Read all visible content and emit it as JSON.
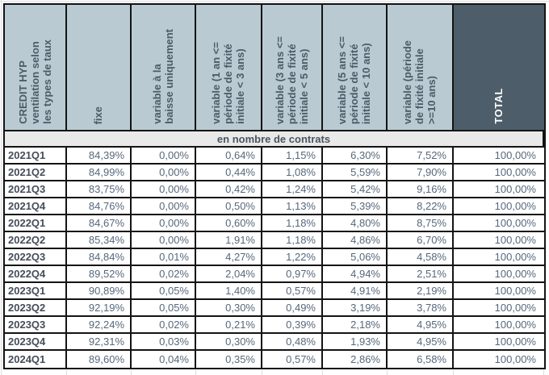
{
  "chart_data": {
    "type": "table",
    "title": "CREDIT HYP ventilation selon les types de taux",
    "corner_header": "CREDIT HYP\nventilation selon\nles types de taux",
    "column_headers": [
      "fixe",
      "variable à la\nbaisse uniquement",
      "variable (1 an <=\npériode de fixité\ninitiale < 3 ans)",
      "variable (3 ans <=\npériode de fixité\ninitiale < 5 ans)",
      "variable (5 ans  <=\npériode de fixité\ninitiale < 10 ans)",
      "variable (période\nde fixité initiale\n>=10 ans)",
      "TOTAL"
    ],
    "section_band": "en nombre de contrats",
    "rows": [
      {
        "label": "2021Q1",
        "values": [
          "84,39%",
          "0,00%",
          "0,64%",
          "1,15%",
          "6,30%",
          "7,52%",
          "100,00%"
        ]
      },
      {
        "label": "2021Q2",
        "values": [
          "84,99%",
          "0,00%",
          "0,44%",
          "1,08%",
          "5,59%",
          "7,90%",
          "100,00%"
        ]
      },
      {
        "label": "2021Q3",
        "values": [
          "83,75%",
          "0,00%",
          "0,42%",
          "1,24%",
          "5,42%",
          "9,16%",
          "100,00%"
        ]
      },
      {
        "label": "2021Q4",
        "values": [
          "84,76%",
          "0,00%",
          "0,50%",
          "1,13%",
          "5,39%",
          "8,22%",
          "100,00%"
        ]
      },
      {
        "label": "2022Q1",
        "values": [
          "84,67%",
          "0,00%",
          "0,60%",
          "1,18%",
          "4,80%",
          "8,75%",
          "100,00%"
        ]
      },
      {
        "label": "2022Q2",
        "values": [
          "85,34%",
          "0,00%",
          "1,91%",
          "1,18%",
          "4,86%",
          "6,70%",
          "100,00%"
        ]
      },
      {
        "label": "2022Q3",
        "values": [
          "84,84%",
          "0,01%",
          "4,27%",
          "1,22%",
          "5,06%",
          "4,58%",
          "100,00%"
        ]
      },
      {
        "label": "2022Q4",
        "values": [
          "89,52%",
          "0,02%",
          "2,04%",
          "0,97%",
          "4,94%",
          "2,51%",
          "100,00%"
        ]
      },
      {
        "label": "2023Q1",
        "values": [
          "90,89%",
          "0,05%",
          "1,40%",
          "0,57%",
          "4,91%",
          "2,19%",
          "100,00%"
        ]
      },
      {
        "label": "2023Q2",
        "values": [
          "92,19%",
          "0,05%",
          "0,30%",
          "0,49%",
          "3,19%",
          "3,78%",
          "100,00%"
        ]
      },
      {
        "label": "2023Q3",
        "values": [
          "92,24%",
          "0,02%",
          "0,21%",
          "0,39%",
          "2,18%",
          "4,95%",
          "100,00%"
        ]
      },
      {
        "label": "2023Q4",
        "values": [
          "92,31%",
          "0,03%",
          "0,30%",
          "0,48%",
          "1,93%",
          "4,95%",
          "100,00%"
        ]
      },
      {
        "label": "2024Q1",
        "values": [
          "89,60%",
          "0,04%",
          "0,35%",
          "0,57%",
          "2,86%",
          "6,58%",
          "100,00%"
        ]
      }
    ],
    "layout": {
      "header_bg": "#b9cad2",
      "total_header_bg": "#4d5e6a",
      "band_bg": "#e9e9e9",
      "value_text_color": "#57687c",
      "label_text_color": "#454d59",
      "header_text_color": "#4c5c66",
      "border_color": "#141414"
    }
  }
}
